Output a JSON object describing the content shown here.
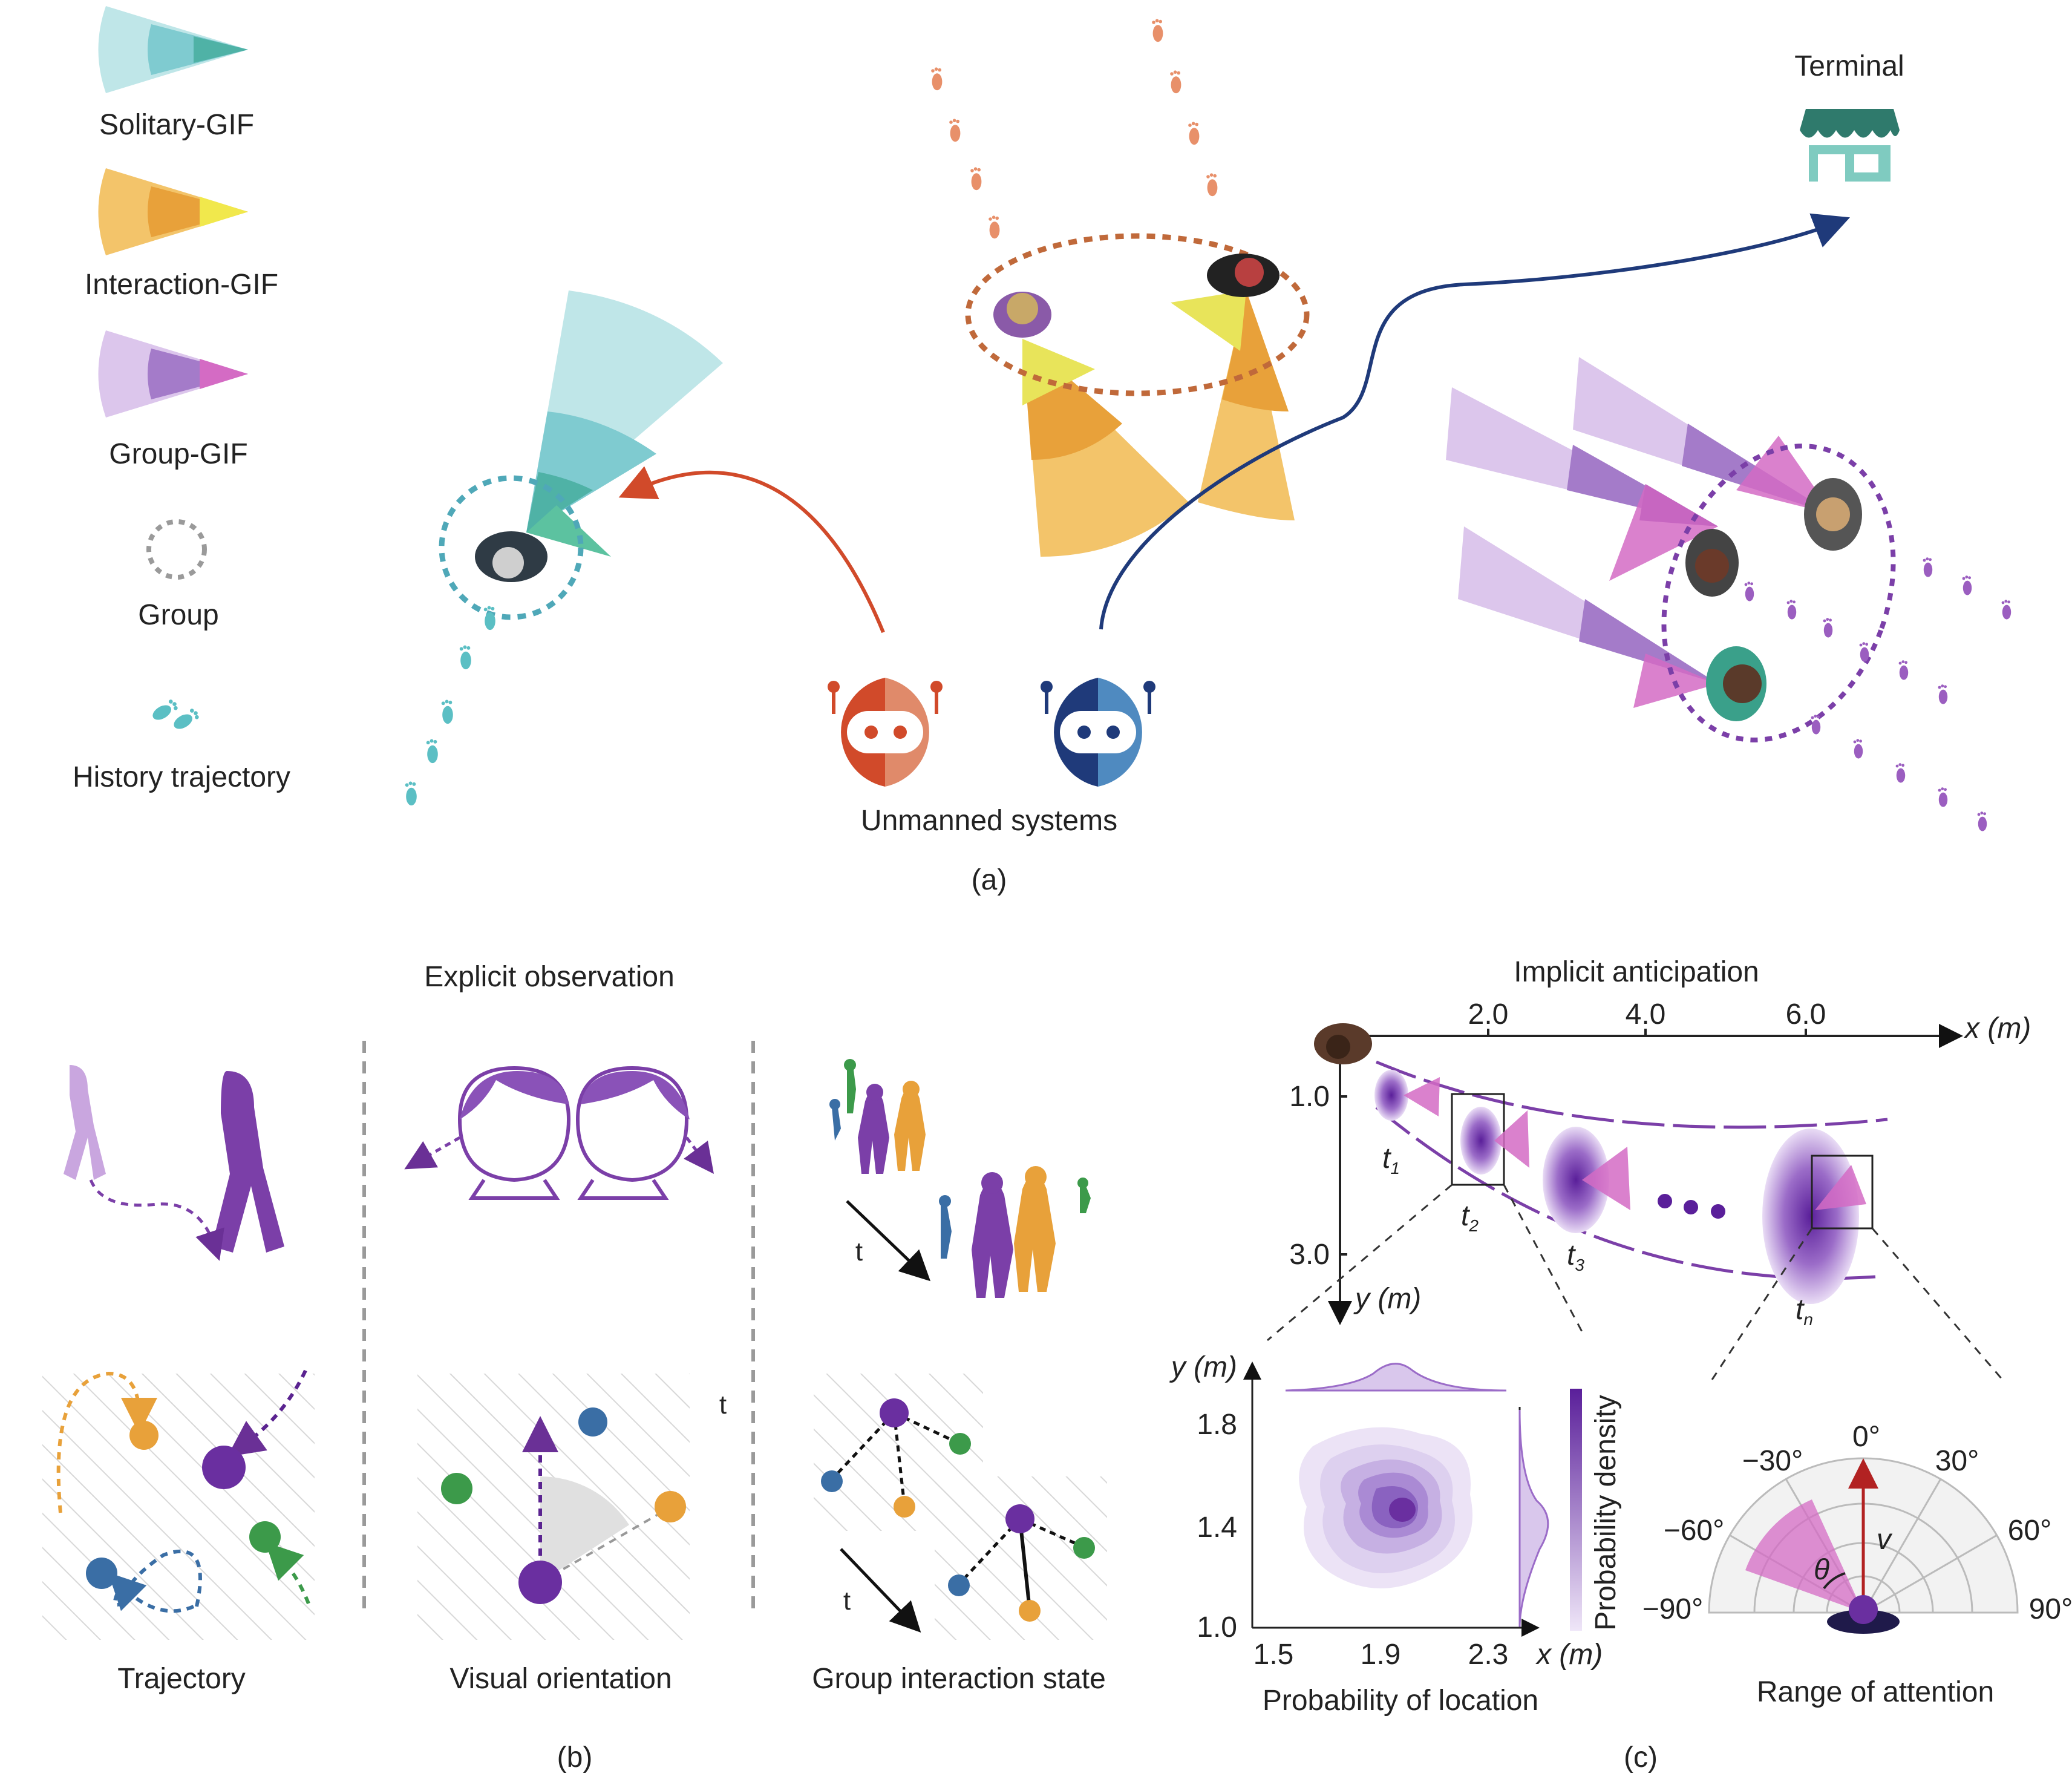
{
  "legend": {
    "solitary": "Solitary-GIF",
    "interaction": "Interaction-GIF",
    "group": "Group-GIF",
    "group_circle": "Group",
    "history": "History trajectory"
  },
  "panel_a": {
    "terminal": "Terminal",
    "unmanned": "Unmanned systems",
    "caption": "(a)"
  },
  "panel_b": {
    "title": "Explicit observation",
    "trajectory": "Trajectory",
    "visual_orientation": "Visual orientation",
    "group_interaction": "Group interaction state",
    "t_label": "t",
    "caption": "(b)"
  },
  "panel_c": {
    "title": "Implicit anticipation",
    "x_axis_label": "x (m)",
    "y_axis_label": "y (m)",
    "x_ticks": [
      "2.0",
      "4.0",
      "6.0"
    ],
    "y_ticks": [
      "1.0",
      "3.0"
    ],
    "times": [
      "t1",
      "t2",
      "t3",
      "tn"
    ],
    "caption": "(c)"
  },
  "density_plot": {
    "xlabel": "Probability of location",
    "x_unit": "x (m)",
    "y_unit": "y (m)",
    "x_ticks": [
      "1.5",
      "1.9",
      "2.3"
    ],
    "y_ticks": [
      "1.8",
      "1.4",
      "1.0"
    ],
    "colorbar_label": "Probability density"
  },
  "polar": {
    "title": "Range of attention",
    "angle_labels": [
      "0°",
      "−30°",
      "30°",
      "−60°",
      "60°",
      "−90°",
      "90°"
    ],
    "v_label": "v",
    "theta_label": "θ"
  },
  "colors": {
    "teal": "#5bbfc4",
    "orange": "#e8a13a",
    "purple": "#7b3fa8",
    "red": "#d14a2a",
    "navy": "#1f3a7a",
    "terminal": "#3f8f80"
  }
}
